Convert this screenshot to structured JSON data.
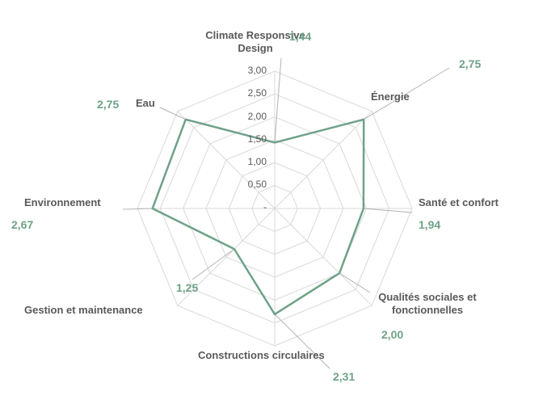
{
  "chart_data": {
    "type": "radar",
    "title": "",
    "categories": [
      "Climate Responsive Design",
      "Énergie",
      "Santé et confort",
      "Qualités sociales et fonctionnelles",
      "Constructions circulaires",
      "Gestion et maintenance",
      "Environnement",
      "Eau"
    ],
    "values": [
      1.44,
      2.75,
      1.94,
      2.0,
      2.31,
      1.25,
      2.67,
      2.75
    ],
    "value_labels": [
      "1,44",
      "2,75",
      "1,94",
      "2,00",
      "2,31",
      "1,25",
      "2,67",
      "2,75"
    ],
    "axis_ticks": [
      "3,00",
      "2,50",
      "2,00",
      "1,50",
      "1,00",
      "0,50",
      "-"
    ],
    "rmax": 3.0,
    "ring_step": 0.5,
    "rings": 6,
    "grid": true,
    "legend_position": "none",
    "series_color": "#6fa287",
    "grid_color": "#d9d9d9",
    "leader_color": "#b3b3b3",
    "label_color": "#595959"
  }
}
